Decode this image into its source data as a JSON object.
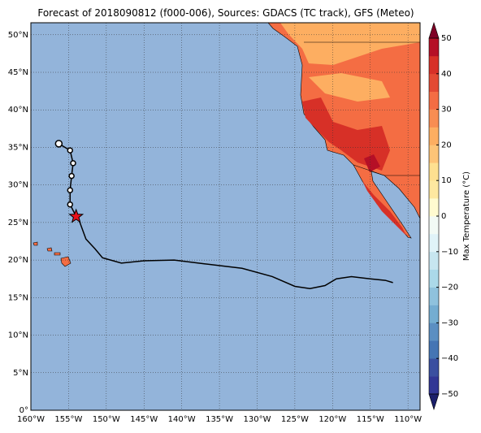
{
  "title": "Forecast of 2018090812 (f000-006), Sources: GDACS (TC track), GFS (Meteo)",
  "map": {
    "xlim": [
      -160,
      -108.4
    ],
    "ylim": [
      0,
      51.6
    ],
    "xticks": [
      {
        "value": -160,
        "label": "160°W"
      },
      {
        "value": -155,
        "label": "155°W"
      },
      {
        "value": -150,
        "label": "150°W"
      },
      {
        "value": -145,
        "label": "145°W"
      },
      {
        "value": -140,
        "label": "140°W"
      },
      {
        "value": -135,
        "label": "135°W"
      },
      {
        "value": -130,
        "label": "130°W"
      },
      {
        "value": -125,
        "label": "125°W"
      },
      {
        "value": -120,
        "label": "120°W"
      },
      {
        "value": -115,
        "label": "115°W"
      },
      {
        "value": -110,
        "label": "110°W"
      }
    ],
    "yticks": [
      {
        "value": 0,
        "label": "0°"
      },
      {
        "value": 5,
        "label": "5°N"
      },
      {
        "value": 10,
        "label": "10°N"
      },
      {
        "value": 15,
        "label": "15°N"
      },
      {
        "value": 20,
        "label": "20°N"
      },
      {
        "value": 25,
        "label": "25°N"
      },
      {
        "value": 30,
        "label": "30°N"
      },
      {
        "value": 35,
        "label": "35°N"
      },
      {
        "value": 40,
        "label": "40°N"
      },
      {
        "value": 45,
        "label": "45°N"
      },
      {
        "value": 50,
        "label": "50°N"
      }
    ],
    "grid": true,
    "track": {
      "lon": [
        -156.3,
        -154.8,
        -154.4,
        -154.6,
        -154.8,
        -154.8,
        -154,
        -153.5,
        -152.7,
        -151.5,
        -150.5,
        -148,
        -145,
        -141,
        -137,
        -132,
        -128,
        -125,
        -123,
        -121,
        -119.5,
        -117.5,
        -115,
        -113,
        -112
      ],
      "lat": [
        35.5,
        34.6,
        32.9,
        31.2,
        29.3,
        27.4,
        25.8,
        25,
        22.8,
        21.5,
        20.3,
        19.6,
        19.9,
        20,
        19.5,
        18.9,
        17.8,
        16.5,
        16.2,
        16.6,
        17.5,
        17.8,
        17.5,
        17.3,
        17
      ]
    },
    "forecast_points": {
      "lon": [
        -156.3,
        -154.8,
        -154.4,
        -154.6,
        -154.8,
        -154.8
      ],
      "lat": [
        35.5,
        34.6,
        32.9,
        31.2,
        29.3,
        27.4
      ]
    },
    "current_position": {
      "lon": -154,
      "lat": 25.8
    }
  },
  "colorbar": {
    "label": "Max Temperature (°C)",
    "ticks": [
      {
        "value": -50,
        "label": "−50"
      },
      {
        "value": -40,
        "label": "−40"
      },
      {
        "value": -30,
        "label": "−30"
      },
      {
        "value": -20,
        "label": "−20"
      },
      {
        "value": -10,
        "label": "−10"
      },
      0,
      10,
      20,
      30,
      40,
      50
    ],
    "colors": [
      "#313695",
      "#3a4fa0",
      "#4575b4",
      "#5b8fc2",
      "#74add1",
      "#8fc2dd",
      "#abd9e9",
      "#c7e6f0",
      "#e0f3f8",
      "#f2faf5",
      "#fffbd0",
      "#fee8a0",
      "#fee090",
      "#fdc477",
      "#fdae61",
      "#f88d52",
      "#f46d43",
      "#e34a33",
      "#d73027",
      "#b50f26"
    ],
    "under": "#1b1f6a",
    "over": "#7f0026"
  }
}
